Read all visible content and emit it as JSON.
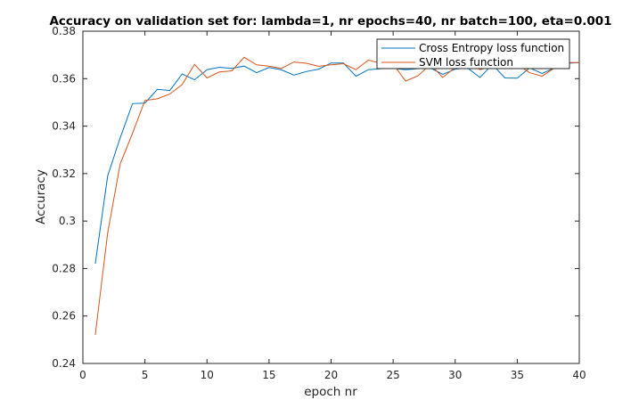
{
  "chart_data": {
    "type": "line",
    "title": "Accuracy on validation set for: lambda=1, nr epochs=40, nr batch=100, eta=0.001",
    "xlabel": "epoch nr",
    "ylabel": "Accuracy",
    "xlim": [
      0,
      40
    ],
    "ylim": [
      0.24,
      0.38
    ],
    "xticks": [
      0,
      5,
      10,
      15,
      20,
      25,
      30,
      35,
      40
    ],
    "xtick_labels": [
      "0",
      "5",
      "10",
      "15",
      "20",
      "25",
      "30",
      "35",
      "40"
    ],
    "yticks": [
      0.24,
      0.26,
      0.28,
      0.3,
      0.32,
      0.34,
      0.36,
      0.38
    ],
    "ytick_labels": [
      "0.24",
      "0.26",
      "0.28",
      "0.3",
      "0.32",
      "0.34",
      "0.36",
      "0.38"
    ],
    "grid": false,
    "legend_position": "top-right",
    "series": [
      {
        "name": "Cross Entropy loss function",
        "color": "#0072bd",
        "x": [
          1,
          2,
          3,
          4,
          5,
          6,
          7,
          8,
          9,
          10,
          11,
          12,
          13,
          14,
          15,
          16,
          17,
          18,
          19,
          20,
          21,
          22,
          23,
          24,
          25,
          26,
          27,
          28,
          29,
          30,
          31,
          32,
          33,
          34,
          35,
          36,
          37,
          38,
          39,
          40
        ],
        "values": [
          0.282,
          0.319,
          0.335,
          0.3495,
          0.3497,
          0.3555,
          0.355,
          0.362,
          0.3595,
          0.3638,
          0.3648,
          0.3643,
          0.3653,
          0.3625,
          0.3647,
          0.3637,
          0.3615,
          0.363,
          0.364,
          0.3666,
          0.3666,
          0.361,
          0.3638,
          0.3642,
          0.3643,
          0.3638,
          0.3642,
          0.3645,
          0.3618,
          0.364,
          0.3645,
          0.3605,
          0.366,
          0.3603,
          0.3602,
          0.3645,
          0.3622,
          0.3645,
          0.3665,
          0.3668
        ]
      },
      {
        "name": "SVM loss function",
        "color": "#d95319",
        "x": [
          1,
          2,
          3,
          4,
          5,
          6,
          7,
          8,
          9,
          10,
          11,
          12,
          13,
          14,
          15,
          16,
          17,
          18,
          19,
          20,
          21,
          22,
          23,
          24,
          25,
          26,
          27,
          28,
          29,
          30,
          31,
          32,
          33,
          34,
          35,
          36,
          37,
          38,
          39,
          40
        ],
        "values": [
          0.252,
          0.295,
          0.324,
          0.337,
          0.3508,
          0.3515,
          0.3535,
          0.3575,
          0.366,
          0.3603,
          0.3628,
          0.3633,
          0.369,
          0.3658,
          0.3653,
          0.3643,
          0.367,
          0.3665,
          0.3652,
          0.3658,
          0.3663,
          0.3638,
          0.3678,
          0.3665,
          0.3662,
          0.359,
          0.3612,
          0.366,
          0.3605,
          0.3648,
          0.3668,
          0.3638,
          0.3655,
          0.3658,
          0.366,
          0.3625,
          0.361,
          0.3645,
          0.3668,
          0.3668
        ]
      }
    ]
  }
}
